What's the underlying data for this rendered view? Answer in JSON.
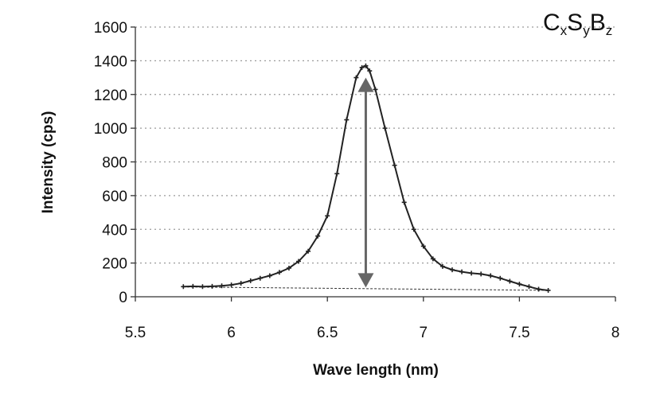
{
  "chart_data": {
    "type": "scatter",
    "title": "",
    "annotation": {
      "parts": [
        "C",
        "x",
        "S",
        "y",
        "B",
        "z"
      ]
    },
    "xlabel": "Wave length (nm)",
    "ylabel": "Intensity (cps)",
    "xlim": [
      5.5,
      8
    ],
    "ylim": [
      0,
      1600
    ],
    "xticks": [
      "5.5",
      "6",
      "6.5",
      "7",
      "7.5",
      "8"
    ],
    "yticks": [
      "0",
      "200",
      "400",
      "600",
      "800",
      "1000",
      "1200",
      "1400",
      "1600"
    ],
    "grid": "horizontal dotted",
    "colors": {
      "series": "#222222",
      "arrow": "#666666",
      "grid": "#9a9a9a"
    },
    "series": [
      {
        "x": [
          5.75,
          5.8,
          5.85,
          5.9,
          5.95,
          6.0,
          6.05,
          6.1,
          6.15,
          6.2,
          6.25,
          6.3,
          6.35,
          6.4,
          6.45,
          6.5,
          6.55,
          6.6,
          6.65,
          6.68,
          6.7,
          6.72,
          6.75,
          6.8,
          6.85,
          6.9,
          6.95,
          7.0,
          7.05,
          7.1,
          7.15,
          7.2,
          7.25,
          7.3,
          7.35,
          7.4,
          7.45,
          7.5,
          7.55,
          7.6,
          7.65
        ],
        "y": [
          60,
          62,
          60,
          62,
          65,
          70,
          80,
          95,
          110,
          125,
          145,
          170,
          210,
          270,
          360,
          480,
          730,
          1050,
          1300,
          1360,
          1370,
          1340,
          1230,
          1000,
          780,
          560,
          400,
          300,
          225,
          180,
          160,
          148,
          140,
          135,
          125,
          110,
          92,
          75,
          60,
          45,
          38
        ]
      }
    ],
    "baseline": {
      "x": [
        5.77,
        7.65
      ],
      "y": [
        58,
        38
      ]
    },
    "arrow": {
      "x": 6.7,
      "y_from": 55,
      "y_to": 1300
    }
  }
}
